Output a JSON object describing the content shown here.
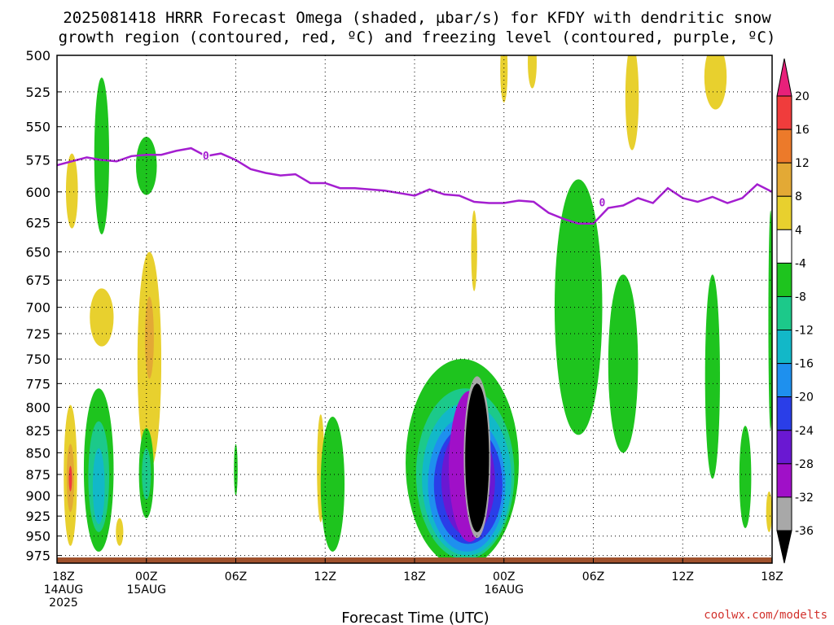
{
  "title_line1": "2025081418 HRRR Forecast Omega (shaded, µbar/s) for KFDY with dendritic snow",
  "title_line2": "growth region (contoured, red, ºC) and freezing level (contoured, purple, ºC)",
  "credit": "coolwx.com/modelts",
  "chart_data": {
    "type": "heatmap",
    "title": "2025081418 HRRR Forecast Omega (shaded, µbar/s) for KFDY with dendritic snow growth region (contoured, red, ºC) and freezing level (contoured, purple, ºC)",
    "xlabel": "Forecast Time (UTC)",
    "ylabel": "",
    "x_range_hours": [
      0,
      48
    ],
    "y_range_mb": [
      500,
      985
    ],
    "y_scale": "log-pressure (inverted)",
    "grid": true,
    "y_ticks": [
      500,
      525,
      550,
      575,
      600,
      625,
      650,
      675,
      700,
      725,
      750,
      775,
      800,
      825,
      850,
      875,
      900,
      925,
      950,
      975
    ],
    "x_ticks": [
      {
        "hour": 0,
        "lines": [
          "18Z",
          "14AUG",
          "2025"
        ]
      },
      {
        "hour": 6,
        "lines": [
          "00Z",
          "15AUG"
        ]
      },
      {
        "hour": 12,
        "lines": [
          "06Z"
        ]
      },
      {
        "hour": 18,
        "lines": [
          "12Z"
        ]
      },
      {
        "hour": 24,
        "lines": [
          "18Z"
        ]
      },
      {
        "hour": 30,
        "lines": [
          "00Z",
          "16AUG"
        ]
      },
      {
        "hour": 36,
        "lines": [
          "06Z"
        ]
      },
      {
        "hour": 42,
        "lines": [
          "12Z"
        ]
      },
      {
        "hour": 48,
        "lines": [
          "18Z"
        ]
      }
    ],
    "colorbar": {
      "labels": [
        "20",
        "16",
        "12",
        "8",
        "4",
        "-4",
        "-8",
        "-12",
        "-16",
        "-20",
        "-24",
        "-28",
        "-32",
        "-36"
      ],
      "bands": [
        {
          "from": 16,
          "to": 20,
          "color": "#f03c3c"
        },
        {
          "from": 12,
          "to": 16,
          "color": "#ec7a2a"
        },
        {
          "from": 8,
          "to": 12,
          "color": "#e3a935"
        },
        {
          "from": 4,
          "to": 8,
          "color": "#e8d02e"
        },
        {
          "from": -4,
          "to": 4,
          "color": "#ffffff"
        },
        {
          "from": -8,
          "to": -4,
          "color": "#1ec41e"
        },
        {
          "from": -12,
          "to": -8,
          "color": "#1cc98a"
        },
        {
          "from": -16,
          "to": -12,
          "color": "#12b8c8"
        },
        {
          "from": -20,
          "to": -16,
          "color": "#1e90ee"
        },
        {
          "from": -24,
          "to": -20,
          "color": "#2a3ee8"
        },
        {
          "from": -28,
          "to": -24,
          "color": "#6a18d2"
        },
        {
          "from": -32,
          "to": -28,
          "color": "#a010c8"
        },
        {
          "from": -36,
          "to": -32,
          "color": "#a8a8a8"
        }
      ],
      "top_arrow_color": "#e8207a",
      "bottom_arrow_color": "#000000"
    },
    "freezing_level": {
      "label": "0",
      "color": "#a41ed0",
      "points": [
        [
          0,
          579
        ],
        [
          1,
          576
        ],
        [
          2,
          573
        ],
        [
          3,
          575
        ],
        [
          4,
          576
        ],
        [
          5,
          572
        ],
        [
          6,
          571
        ],
        [
          7,
          571
        ],
        [
          8,
          568
        ],
        [
          9,
          566
        ],
        [
          10,
          572
        ],
        [
          11,
          570
        ],
        [
          12,
          575
        ],
        [
          13,
          582
        ],
        [
          14,
          585
        ],
        [
          15,
          587
        ],
        [
          16,
          586
        ],
        [
          17,
          593
        ],
        [
          18,
          593
        ],
        [
          19,
          597
        ],
        [
          20,
          597
        ],
        [
          21,
          598
        ],
        [
          22,
          599
        ],
        [
          23,
          601
        ],
        [
          24,
          603
        ],
        [
          25,
          598
        ],
        [
          26,
          602
        ],
        [
          27,
          603
        ],
        [
          28,
          608
        ],
        [
          29,
          609
        ],
        [
          30,
          609
        ],
        [
          31,
          607
        ],
        [
          32,
          608
        ],
        [
          33,
          617
        ],
        [
          34,
          622
        ],
        [
          35,
          626
        ],
        [
          36,
          626
        ],
        [
          37,
          613
        ],
        [
          38,
          611
        ],
        [
          39,
          605
        ],
        [
          40,
          609
        ],
        [
          41,
          597
        ],
        [
          42,
          605
        ],
        [
          43,
          608
        ],
        [
          44,
          604
        ],
        [
          45,
          609
        ],
        [
          46,
          605
        ],
        [
          47,
          594
        ],
        [
          48,
          600
        ]
      ]
    },
    "omega_regions": [
      {
        "name": "pos-early",
        "band": "#e8d02e",
        "x": 1.0,
        "y": 600,
        "w": 0.8,
        "h": 60
      },
      {
        "name": "neg-early-upper",
        "band": "#1ec41e",
        "x": 3.0,
        "y": 575,
        "w": 1.0,
        "h": 120
      },
      {
        "name": "neg-00z-upper",
        "band": "#1ec41e",
        "x": 6.0,
        "y": 580,
        "w": 1.4,
        "h": 45
      },
      {
        "name": "pos-00z-mid",
        "band": "#e8d02e",
        "x": 6.2,
        "y": 760,
        "w": 1.6,
        "h": 220
      },
      {
        "name": "pos-00z-mid-core",
        "band": "#e3a935",
        "x": 6.2,
        "y": 730,
        "w": 0.6,
        "h": 80
      },
      {
        "name": "pos-early-mid",
        "band": "#e8d02e",
        "x": 3.0,
        "y": 710,
        "w": 1.6,
        "h": 55
      },
      {
        "name": "pos-early-low",
        "band": "#e8d02e",
        "x": 0.9,
        "y": 880,
        "w": 0.9,
        "h": 165
      },
      {
        "name": "pos-early-low-core",
        "band": "#e3a935",
        "x": 0.9,
        "y": 880,
        "w": 0.5,
        "h": 80
      },
      {
        "name": "pos-early-low-max",
        "band": "#f03c3c",
        "x": 0.9,
        "y": 880,
        "w": 0.2,
        "h": 30
      },
      {
        "name": "neg-early-low",
        "band": "#1ec41e",
        "x": 2.8,
        "y": 875,
        "w": 2.0,
        "h": 190
      },
      {
        "name": "neg-early-low-2",
        "band": "#1cc98a",
        "x": 2.8,
        "y": 880,
        "w": 1.4,
        "h": 130
      },
      {
        "name": "neg-early-low-3",
        "band": "#12b8c8",
        "x": 2.8,
        "y": 890,
        "w": 0.8,
        "h": 90
      },
      {
        "name": "pos-early-bottom",
        "band": "#e8d02e",
        "x": 4.2,
        "y": 945,
        "w": 0.5,
        "h": 35
      },
      {
        "name": "neg-00z-low",
        "band": "#1ec41e",
        "x": 6.0,
        "y": 875,
        "w": 1.0,
        "h": 105
      },
      {
        "name": "neg-00z-low-2",
        "band": "#1cc98a",
        "x": 6.0,
        "y": 875,
        "w": 0.6,
        "h": 60
      },
      {
        "name": "neg-06z-low",
        "band": "#1ec41e",
        "x": 12.0,
        "y": 870,
        "w": 0.25,
        "h": 60
      },
      {
        "name": "pos-12z-low",
        "band": "#e8d02e",
        "x": 17.7,
        "y": 870,
        "w": 0.5,
        "h": 125
      },
      {
        "name": "neg-12z-low",
        "band": "#1ec41e",
        "x": 18.5,
        "y": 890,
        "w": 1.6,
        "h": 160
      },
      {
        "name": "neg-storm",
        "band": "#1ec41e",
        "x": 27.2,
        "y": 870,
        "w": 7.6,
        "h": 240
      },
      {
        "name": "neg-storm-2",
        "band": "#1cc98a",
        "x": 27.4,
        "y": 880,
        "w": 6.6,
        "h": 200
      },
      {
        "name": "neg-storm-3",
        "band": "#12b8c8",
        "x": 27.5,
        "y": 885,
        "w": 6.0,
        "h": 180
      },
      {
        "name": "neg-storm-4",
        "band": "#1e90ee",
        "x": 27.5,
        "y": 890,
        "w": 5.2,
        "h": 160
      },
      {
        "name": "neg-storm-5",
        "band": "#2a3ee8",
        "x": 27.6,
        "y": 890,
        "w": 4.6,
        "h": 140
      },
      {
        "name": "neg-storm-6",
        "band": "#6a18d2",
        "x": 27.6,
        "y": 885,
        "w": 3.6,
        "h": 130
      },
      {
        "name": "neg-storm-7",
        "band": "#a010c8",
        "x": 27.7,
        "y": 870,
        "w": 2.8,
        "h": 175
      },
      {
        "name": "neg-storm-8",
        "band": "#a8a8a8",
        "x": 28.2,
        "y": 860,
        "w": 1.8,
        "h": 185
      },
      {
        "name": "neg-storm-core",
        "band": "#000000",
        "x": 28.2,
        "y": 860,
        "w": 1.6,
        "h": 170
      },
      {
        "name": "pos-storm-upper",
        "band": "#e8d02e",
        "x": 28.0,
        "y": 650,
        "w": 0.4,
        "h": 70
      },
      {
        "name": "pos-top-30",
        "band": "#e8d02e",
        "x": 30.0,
        "y": 510,
        "w": 0.5,
        "h": 45
      },
      {
        "name": "pos-top-31",
        "band": "#e8d02e",
        "x": 31.9,
        "y": 505,
        "w": 0.6,
        "h": 35
      },
      {
        "name": "neg-06z-mid",
        "band": "#1ec41e",
        "x": 35.0,
        "y": 710,
        "w": 3.2,
        "h": 240
      },
      {
        "name": "neg-06z-mid-2",
        "band": "#1ec41e",
        "x": 38.0,
        "y": 760,
        "w": 2.0,
        "h": 180
      },
      {
        "name": "pos-top-38",
        "band": "#e8d02e",
        "x": 38.6,
        "y": 530,
        "w": 0.9,
        "h": 75
      },
      {
        "name": "pos-top-44",
        "band": "#e8d02e",
        "x": 44.2,
        "y": 515,
        "w": 1.5,
        "h": 45
      },
      {
        "name": "neg-12z-mid",
        "band": "#1ec41e",
        "x": 44.0,
        "y": 775,
        "w": 1.0,
        "h": 210
      },
      {
        "name": "neg-15z-low",
        "band": "#1ec41e",
        "x": 46.2,
        "y": 880,
        "w": 0.8,
        "h": 120
      },
      {
        "name": "pos-18z-low",
        "band": "#e8d02e",
        "x": 47.8,
        "y": 920,
        "w": 0.4,
        "h": 50
      },
      {
        "name": "neg-18z-mid",
        "band": "#1ec41e",
        "x": 47.9,
        "y": 720,
        "w": 0.3,
        "h": 210
      }
    ],
    "surface_color": "#a0522d"
  }
}
